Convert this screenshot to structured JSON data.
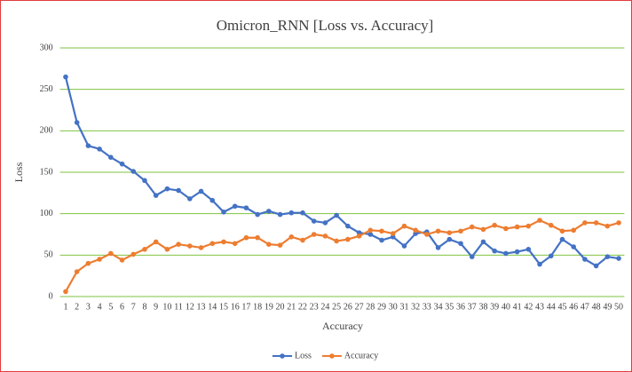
{
  "chart_data": {
    "type": "line",
    "title": "Omicron_RNN  [Loss vs. Accuracy]",
    "y_label": "Loss",
    "x_label": "Accuracy",
    "categories": [
      1,
      2,
      3,
      4,
      5,
      6,
      7,
      8,
      9,
      10,
      11,
      12,
      13,
      14,
      15,
      16,
      17,
      18,
      19,
      20,
      21,
      22,
      23,
      24,
      25,
      26,
      27,
      28,
      29,
      30,
      31,
      32,
      33,
      34,
      35,
      36,
      37,
      38,
      39,
      40,
      41,
      42,
      43,
      44,
      45,
      46,
      47,
      48,
      49,
      50
    ],
    "series": [
      {
        "name": "Loss",
        "color": "#4472c4",
        "values": [
          265,
          210,
          182,
          178,
          168,
          160,
          151,
          140,
          122,
          130,
          128,
          118,
          127,
          116,
          102,
          109,
          107,
          99,
          103,
          99,
          101,
          101,
          91,
          89,
          98,
          85,
          77,
          75,
          68,
          72,
          61,
          76,
          78,
          59,
          69,
          64,
          48,
          66,
          55,
          52,
          54,
          57,
          39,
          49,
          69,
          60,
          45,
          37,
          48,
          46
        ]
      },
      {
        "name": "Accuracy",
        "color": "#ed7d31",
        "values": [
          6,
          30,
          40,
          45,
          52,
          44,
          51,
          57,
          66,
          57,
          63,
          61,
          59,
          64,
          66,
          64,
          71,
          71,
          63,
          62,
          72,
          68,
          75,
          73,
          67,
          69,
          73,
          80,
          79,
          76,
          85,
          80,
          75,
          79,
          77,
          79,
          84,
          81,
          86,
          82,
          84,
          85,
          92,
          86,
          79,
          80,
          89,
          89,
          85,
          89
        ]
      }
    ],
    "ylim": [
      0,
      300
    ],
    "yticks": [
      0,
      50,
      100,
      150,
      200,
      250,
      300
    ],
    "grid": true,
    "grid_color": "#7fc241",
    "legend": "bottom"
  }
}
